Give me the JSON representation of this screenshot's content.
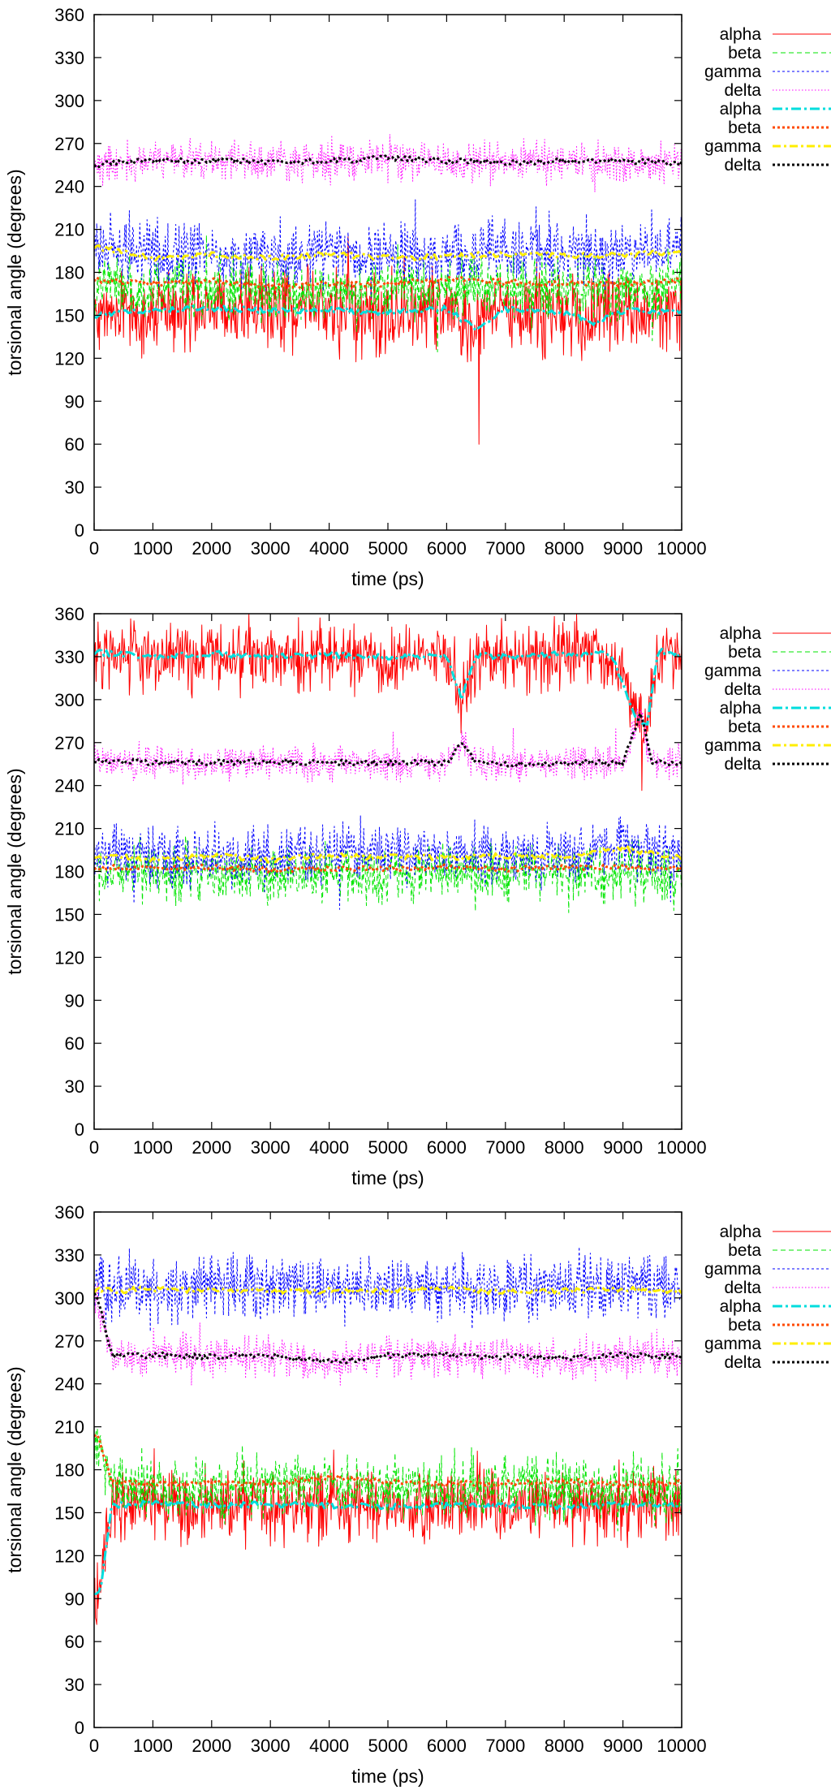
{
  "colors": {
    "raw_alpha": "#ff0000",
    "raw_beta": "#00e600",
    "raw_gamma": "#0000ff",
    "raw_delta": "#ff00ff",
    "avg_alpha": "#00dddd",
    "avg_beta": "#ff4a00",
    "avg_gamma": "#ffee00",
    "avg_delta": "#000000"
  },
  "chart_data": [
    {
      "type": "line",
      "xlabel": "time (ps)",
      "ylabel": "torsional angle (degrees)",
      "xlim": [
        0,
        10000
      ],
      "ylim": [
        0,
        360
      ],
      "xticks": [
        0,
        1000,
        2000,
        3000,
        4000,
        5000,
        6000,
        7000,
        8000,
        9000,
        10000
      ],
      "yticks": [
        0,
        30,
        60,
        90,
        120,
        150,
        180,
        210,
        240,
        270,
        300,
        330,
        360
      ],
      "grid": false,
      "legend": "top-right, outside plot area",
      "series": [
        {
          "name": "alpha",
          "kind": "raw",
          "color": "#ff0000",
          "mean": 152,
          "spread": 28,
          "summary": "fluctuates ~125-175, dip to 60 near 6550 ps"
        },
        {
          "name": "beta",
          "kind": "raw",
          "color": "#00e600",
          "mean": 168,
          "spread": 22,
          "summary": "fluctuates ~150-190"
        },
        {
          "name": "gamma",
          "kind": "raw",
          "color": "#0000ff",
          "mean": 192,
          "spread": 22,
          "summary": "fluctuates ~175-215"
        },
        {
          "name": "delta",
          "kind": "raw",
          "color": "#ff00ff",
          "mean": 259,
          "spread": 14,
          "summary": "fluctuates ~245-275"
        },
        {
          "name": "alpha",
          "kind": "average",
          "color": "#00dddd",
          "x": [
            0,
            1000,
            2000,
            3000,
            4000,
            5000,
            6000,
            6500,
            7000,
            8000,
            8500,
            9000,
            10000
          ],
          "y": [
            150,
            154,
            155,
            153,
            154,
            152,
            155,
            140,
            154,
            152,
            145,
            153,
            153
          ]
        },
        {
          "name": "beta",
          "kind": "average",
          "color": "#ff4a00",
          "x": [
            0,
            1000,
            2000,
            3000,
            4000,
            5000,
            6000,
            7000,
            8000,
            9000,
            10000
          ],
          "y": [
            175,
            172,
            174,
            170,
            172,
            172,
            175,
            173,
            172,
            172,
            174
          ]
        },
        {
          "name": "gamma",
          "kind": "average",
          "color": "#ffee00",
          "x": [
            0,
            1000,
            2000,
            3000,
            4000,
            5000,
            6000,
            7000,
            8000,
            9000,
            10000
          ],
          "y": [
            198,
            190,
            192,
            190,
            193,
            190,
            191,
            193,
            192,
            192,
            195
          ]
        },
        {
          "name": "delta",
          "kind": "average",
          "color": "#000000",
          "x": [
            0,
            1000,
            2000,
            3000,
            4000,
            5000,
            6000,
            7000,
            8000,
            9000,
            10000
          ],
          "y": [
            255,
            258,
            258,
            257,
            258,
            260,
            258,
            257,
            258,
            258,
            256
          ]
        }
      ]
    },
    {
      "type": "line",
      "xlabel": "time (ps)",
      "ylabel": "torsional angle (degrees)",
      "xlim": [
        0,
        10000
      ],
      "ylim": [
        0,
        360
      ],
      "xticks": [
        0,
        1000,
        2000,
        3000,
        4000,
        5000,
        6000,
        7000,
        8000,
        9000,
        10000
      ],
      "yticks": [
        0,
        30,
        60,
        90,
        120,
        150,
        180,
        210,
        240,
        270,
        300,
        330,
        360
      ],
      "grid": false,
      "legend": "top-right, outside plot area",
      "series": [
        {
          "name": "alpha",
          "kind": "raw",
          "color": "#ff0000",
          "mean": 335,
          "spread": 24,
          "summary": "fluctuates ~310-360, drops to ~280 around 6200 ps and 9200-9400 ps"
        },
        {
          "name": "beta",
          "kind": "raw",
          "color": "#00e600",
          "mean": 178,
          "spread": 20,
          "summary": "fluctuates ~155-195"
        },
        {
          "name": "gamma",
          "kind": "raw",
          "color": "#0000ff",
          "mean": 190,
          "spread": 20,
          "summary": "fluctuates ~170-215"
        },
        {
          "name": "delta",
          "kind": "raw",
          "color": "#ff00ff",
          "mean": 257,
          "spread": 12,
          "summary": "fluctuates ~245-275, rises to ~290 near 9300 ps"
        },
        {
          "name": "alpha",
          "kind": "average",
          "color": "#00dddd",
          "x": [
            0,
            1000,
            2000,
            3000,
            4000,
            5000,
            6000,
            6250,
            6500,
            7000,
            8000,
            8800,
            9200,
            9400,
            9600,
            10000
          ],
          "y": [
            333,
            330,
            332,
            330,
            331,
            330,
            331,
            300,
            331,
            330,
            332,
            332,
            290,
            280,
            335,
            330
          ]
        },
        {
          "name": "beta",
          "kind": "average",
          "color": "#ff4a00",
          "x": [
            0,
            1000,
            2000,
            3000,
            4000,
            5000,
            6000,
            7000,
            8000,
            9000,
            10000
          ],
          "y": [
            183,
            182,
            183,
            181,
            182,
            182,
            183,
            182,
            183,
            183,
            182
          ]
        },
        {
          "name": "gamma",
          "kind": "average",
          "color": "#ffee00",
          "x": [
            0,
            1000,
            2000,
            3000,
            4000,
            5000,
            6000,
            7000,
            8000,
            9000,
            10000
          ],
          "y": [
            191,
            189,
            191,
            188,
            191,
            190,
            190,
            191,
            190,
            196,
            190
          ]
        },
        {
          "name": "delta",
          "kind": "average",
          "color": "#000000",
          "x": [
            0,
            1000,
            2000,
            3000,
            4000,
            5000,
            6000,
            6250,
            6500,
            7000,
            8000,
            9000,
            9300,
            9500,
            10000
          ],
          "y": [
            258,
            256,
            256,
            257,
            256,
            256,
            256,
            270,
            256,
            255,
            256,
            256,
            290,
            256,
            256
          ]
        }
      ]
    },
    {
      "type": "line",
      "xlabel": "time (ps)",
      "ylabel": "torsional angle (degrees)",
      "xlim": [
        0,
        10000
      ],
      "ylim": [
        0,
        360
      ],
      "xticks": [
        0,
        1000,
        2000,
        3000,
        4000,
        5000,
        6000,
        7000,
        8000,
        9000,
        10000
      ],
      "yticks": [
        0,
        30,
        60,
        90,
        120,
        150,
        180,
        210,
        240,
        270,
        300,
        330,
        360
      ],
      "grid": false,
      "legend": "top-right, outside plot area",
      "series": [
        {
          "name": "alpha",
          "kind": "raw",
          "color": "#ff0000",
          "mean": 153,
          "spread": 24,
          "summary": "starts ~95 for first 200 ps, then fluctuates ~130-175"
        },
        {
          "name": "beta",
          "kind": "raw",
          "color": "#00e600",
          "mean": 170,
          "spread": 22,
          "summary": "starts ~205, then fluctuates ~150-195"
        },
        {
          "name": "gamma",
          "kind": "raw",
          "color": "#0000ff",
          "mean": 305,
          "spread": 22,
          "summary": "fluctuates ~285-335"
        },
        {
          "name": "delta",
          "kind": "raw",
          "color": "#ff00ff",
          "mean": 258,
          "spread": 14,
          "summary": "starts ~300, then fluctuates ~245-275"
        },
        {
          "name": "alpha",
          "kind": "average",
          "color": "#00dddd",
          "x": [
            0,
            100,
            300,
            1000,
            2000,
            3000,
            4000,
            5000,
            6000,
            7000,
            8000,
            9000,
            10000
          ],
          "y": [
            95,
            95,
            155,
            157,
            155,
            156,
            155,
            154,
            155,
            155,
            154,
            156,
            155
          ]
        },
        {
          "name": "beta",
          "kind": "average",
          "color": "#ff4a00",
          "x": [
            0,
            100,
            300,
            1000,
            2000,
            3000,
            4000,
            5000,
            6000,
            7000,
            8000,
            9000,
            10000
          ],
          "y": [
            205,
            200,
            172,
            170,
            171,
            170,
            175,
            172,
            170,
            171,
            172,
            170,
            171
          ]
        },
        {
          "name": "gamma",
          "kind": "average",
          "color": "#ffee00",
          "x": [
            0,
            1000,
            2000,
            3000,
            4000,
            5000,
            6000,
            7000,
            8000,
            9000,
            10000
          ],
          "y": [
            305,
            306,
            305,
            305,
            305,
            305,
            306,
            304,
            305,
            306,
            305
          ]
        },
        {
          "name": "delta",
          "kind": "average",
          "color": "#000000",
          "x": [
            0,
            100,
            300,
            1000,
            2000,
            3000,
            4000,
            5000,
            6000,
            7000,
            8000,
            9000,
            10000
          ],
          "y": [
            305,
            295,
            260,
            260,
            259,
            260,
            255,
            260,
            260,
            259,
            258,
            260,
            259
          ]
        }
      ]
    }
  ]
}
